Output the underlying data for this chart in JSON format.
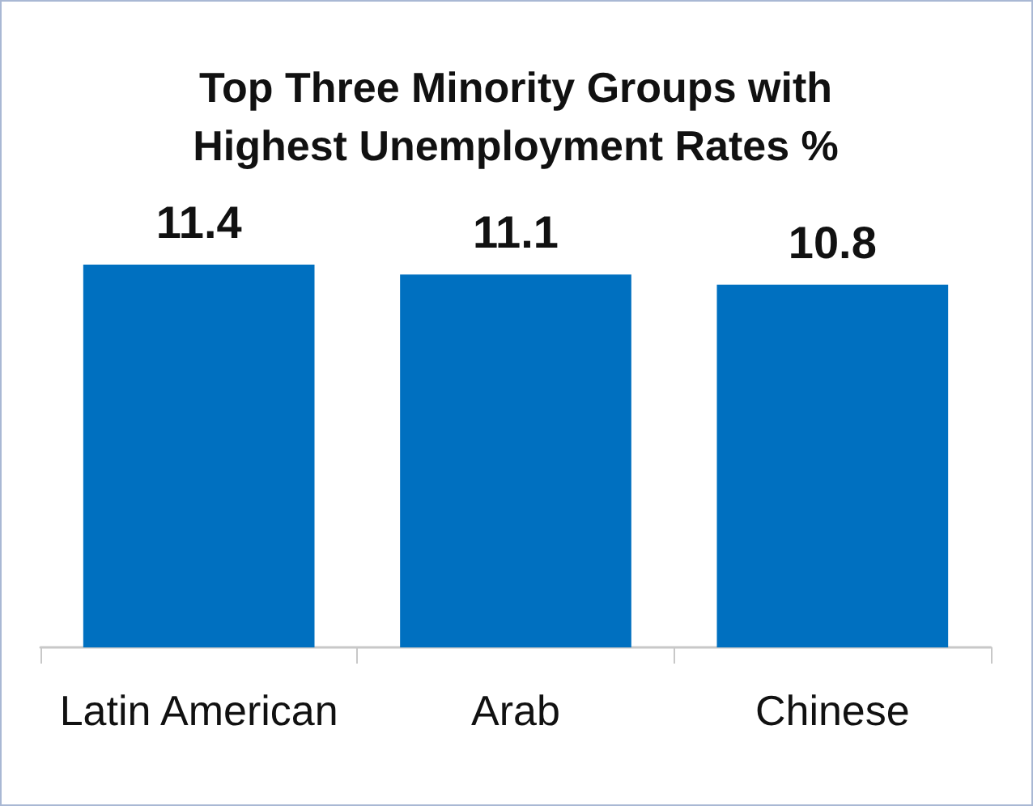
{
  "chart_data": {
    "type": "bar",
    "title": "Top Three Minority Groups with\nHighest Unemployment Rates %",
    "categories": [
      "Latin American",
      "Arab",
      "Chinese"
    ],
    "values": [
      11.4,
      11.1,
      10.8
    ],
    "color": "#0070c0",
    "data_labels": true
  }
}
